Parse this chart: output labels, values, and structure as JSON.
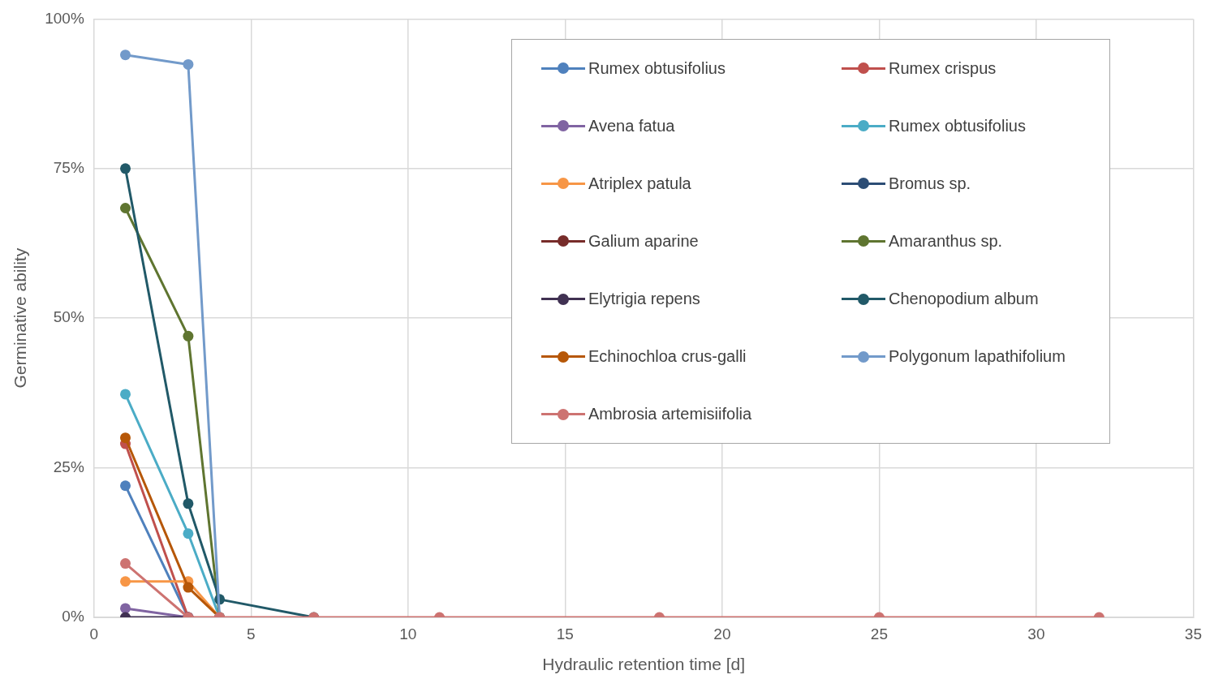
{
  "chart_data": {
    "type": "line",
    "xlabel": "Hydraulic retention time [d]",
    "ylabel": "Germinative ability",
    "x": [
      1,
      3,
      4,
      7,
      11,
      18,
      25,
      32
    ],
    "xlim": [
      0,
      35
    ],
    "xticks": [
      0,
      5,
      10,
      15,
      20,
      25,
      30,
      35
    ],
    "ylim": [
      0,
      100
    ],
    "yticks": [
      {
        "value": 0,
        "label": "0%"
      },
      {
        "value": 25,
        "label": "25%"
      },
      {
        "value": 50,
        "label": "50%"
      },
      {
        "value": 75,
        "label": "75%"
      },
      {
        "value": 100,
        "label": "100%"
      }
    ],
    "grid": true,
    "legend": "top right",
    "marker": "circle",
    "line_style": "solid",
    "series": [
      {
        "name": "Rumex obtusifolius",
        "color": "#4f81bd",
        "values": [
          22,
          0,
          null,
          null,
          null,
          null,
          null,
          null
        ]
      },
      {
        "name": "Rumex crispus",
        "color": "#c0504d",
        "values": [
          29,
          0,
          null,
          null,
          null,
          null,
          null,
          null
        ]
      },
      {
        "name": "Avena fatua",
        "color": "#8064a2",
        "values": [
          1.5,
          0,
          null,
          null,
          null,
          null,
          null,
          null
        ]
      },
      {
        "name": "Rumex obtusifolius",
        "color": "#4bacc6",
        "values": [
          37.3,
          14,
          0,
          null,
          null,
          null,
          null,
          null
        ]
      },
      {
        "name": "Atriplex patula",
        "color": "#f79646",
        "values": [
          6,
          6,
          0,
          null,
          null,
          null,
          null,
          null
        ]
      },
      {
        "name": "Bromus sp.",
        "color": "#2c4d75",
        "values": [
          null,
          null,
          null,
          null,
          null,
          null,
          null,
          null
        ]
      },
      {
        "name": "Galium aparine",
        "color": "#772c2a",
        "values": [
          null,
          null,
          null,
          null,
          null,
          null,
          null,
          null
        ]
      },
      {
        "name": "Amaranthus sp.",
        "color": "#5f7530",
        "values": [
          68.4,
          47,
          0,
          null,
          null,
          null,
          null,
          null
        ]
      },
      {
        "name": "Elytrigia repens",
        "color": "#403152",
        "values": [
          0,
          0,
          null,
          null,
          null,
          null,
          null,
          null
        ]
      },
      {
        "name": "Chenopodium album",
        "color": "#215968",
        "values": [
          75,
          19,
          3,
          0,
          null,
          null,
          null,
          null
        ]
      },
      {
        "name": "Echinochloa crus-galli",
        "color": "#b65708",
        "values": [
          30,
          5,
          0,
          null,
          null,
          null,
          null,
          null
        ]
      },
      {
        "name": "Polygonum lapathifolium",
        "color": "#729aca",
        "values": [
          94,
          92.4,
          0,
          null,
          null,
          null,
          null,
          null
        ]
      },
      {
        "name": "Ambrosia artemisiifolia",
        "color": "#cd7371",
        "values": [
          9,
          0,
          0,
          0,
          0,
          0,
          0,
          0
        ]
      }
    ]
  }
}
